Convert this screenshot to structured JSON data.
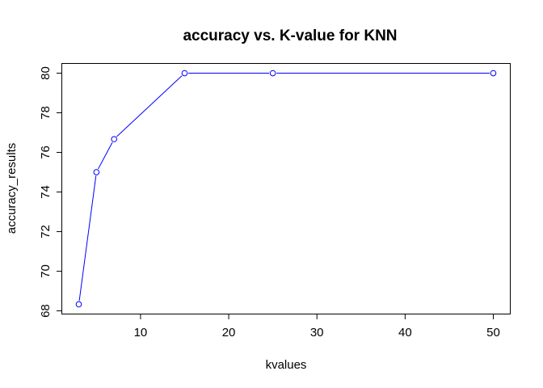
{
  "chart_data": {
    "type": "line",
    "title": "accuracy vs. K-value for KNN",
    "xlabel": "kvalues",
    "ylabel": "accuracy_results",
    "x": [
      3,
      5,
      7,
      15,
      25,
      50
    ],
    "series": [
      {
        "name": "accuracy_results",
        "values": [
          68.33,
          75.0,
          76.67,
          80.0,
          80.0,
          80.0
        ],
        "color": "#0000ff",
        "marker": "open-circle"
      }
    ],
    "xlim": [
      1.12,
      51.88
    ],
    "ylim": [
      67.86,
      80.47
    ],
    "xticks": [
      10,
      20,
      30,
      40,
      50
    ],
    "yticks": [
      68,
      70,
      72,
      74,
      76,
      78,
      80
    ],
    "grid": false,
    "legend": "none"
  }
}
